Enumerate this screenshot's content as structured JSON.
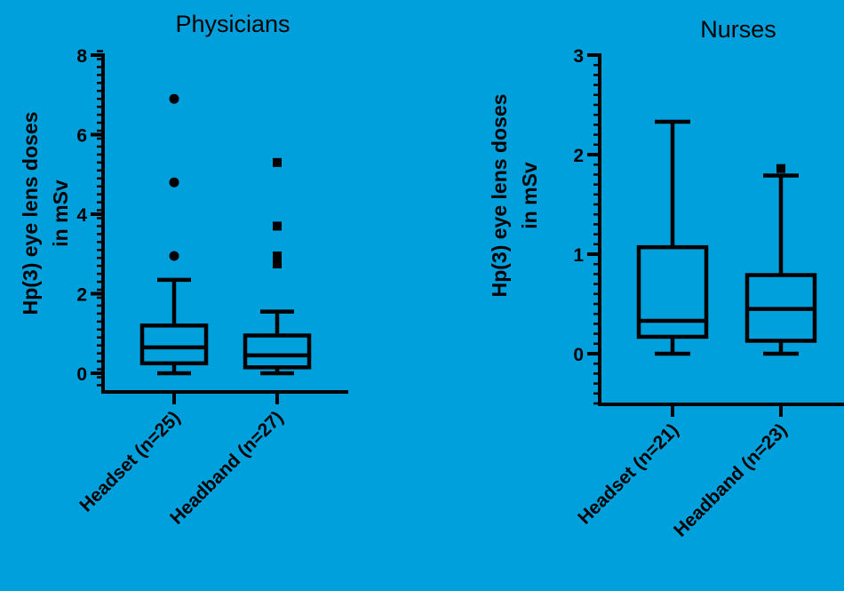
{
  "chart_data": [
    {
      "type": "box",
      "title": "Physicians",
      "ylabel_lines": [
        "Hp(3) eye lens doses",
        "in mSv"
      ],
      "ylim": [
        -0.5,
        8
      ],
      "yticks": [
        "0",
        "2",
        "4",
        "6",
        "8"
      ],
      "ytick_values": [
        0,
        2,
        4,
        6,
        8
      ],
      "minor_step": 0.2,
      "categories": [
        "Headset (n=25)",
        "Headband (n=27)"
      ],
      "boxes": [
        {
          "category": "Headset (n=25)",
          "min": 0,
          "q1": 0.25,
          "median": 0.65,
          "q3": 1.2,
          "max": 2.35,
          "outlier_marker": "circle",
          "outliers": [
            2.95,
            4.8,
            6.9
          ]
        },
        {
          "category": "Headband (n=27)",
          "min": 0,
          "q1": 0.15,
          "median": 0.45,
          "q3": 0.95,
          "max": 1.55,
          "outlier_marker": "square",
          "outliers": [
            2.75,
            2.95,
            3.7,
            5.3
          ]
        }
      ]
    },
    {
      "type": "box",
      "title": "Nurses",
      "ylabel_lines": [
        "Hp(3) eye lens doses",
        "in mSv"
      ],
      "ylim": [
        -0.5,
        3
      ],
      "yticks": [
        "0",
        "1",
        "2",
        "3"
      ],
      "ytick_values": [
        0,
        1,
        2,
        3
      ],
      "minor_step": 0.1,
      "categories": [
        "Headset (n=21)",
        "Headband (n=23)"
      ],
      "boxes": [
        {
          "category": "Headset (n=21)",
          "min": 0,
          "q1": 0.17,
          "median": 0.33,
          "q3": 1.07,
          "max": 2.33,
          "outlier_marker": "circle",
          "outliers": []
        },
        {
          "category": "Headband (n=23)",
          "min": 0,
          "q1": 0.13,
          "median": 0.45,
          "q3": 0.79,
          "max": 1.79,
          "outlier_marker": "square",
          "outliers": [
            1.86
          ]
        }
      ]
    }
  ]
}
